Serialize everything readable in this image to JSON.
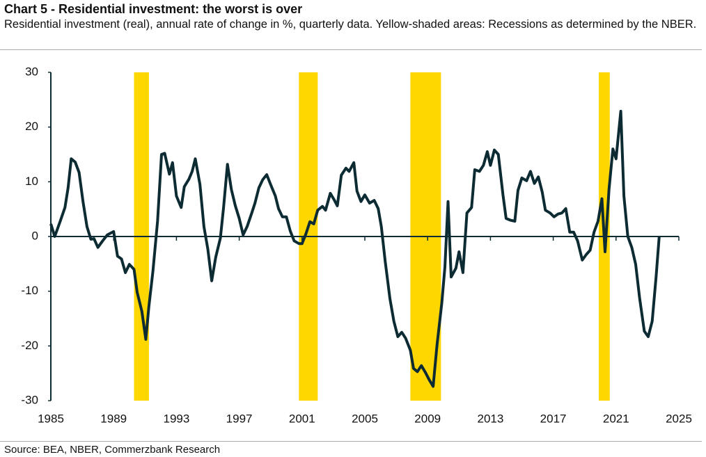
{
  "chart_data": {
    "type": "line",
    "title": "Chart 5 - Residential investment: the worst is over",
    "subtitle": "Residential investment (real), annual rate of change in %, quarterly data. Yellow-shaded areas: Recessions as determined by the NBER.",
    "source": "Source: BEA, NBER, Commerzbank Research",
    "color": "#0d2b33",
    "recession_color": "#ffd700",
    "recessions": [
      [
        1990.3,
        1991.25
      ],
      [
        2000.8,
        2002.0
      ],
      [
        2007.9,
        2009.85
      ],
      [
        2019.9,
        2020.6
      ]
    ],
    "x": [
      1985.0,
      1985.25,
      1985.6,
      1985.9,
      1986.1,
      1986.3,
      1986.55,
      1986.8,
      1987.05,
      1987.3,
      1987.55,
      1987.75,
      1988.0,
      1988.3,
      1988.6,
      1989.0,
      1989.25,
      1989.5,
      1989.75,
      1990.0,
      1990.3,
      1990.5,
      1990.8,
      1991.05,
      1991.25,
      1991.5,
      1991.8,
      1992.05,
      1992.25,
      1992.55,
      1992.75,
      1993.0,
      1993.3,
      1993.5,
      1993.8,
      1994.0,
      1994.2,
      1994.5,
      1994.75,
      1995.0,
      1995.25,
      1995.5,
      1995.8,
      1996.0,
      1996.25,
      1996.5,
      1996.75,
      1997.0,
      1997.25,
      1997.5,
      1997.8,
      1998.0,
      1998.25,
      1998.5,
      1998.75,
      1999.0,
      1999.3,
      1999.5,
      1999.75,
      2000.0,
      2000.25,
      2000.5,
      2000.8,
      2001.0,
      2001.25,
      2001.5,
      2001.75,
      2002.0,
      2002.3,
      2002.5,
      2002.8,
      2003.05,
      2003.25,
      2003.5,
      2003.8,
      2004.0,
      2004.3,
      2004.5,
      2004.75,
      2005.0,
      2005.3,
      2005.6,
      2005.85,
      2006.05,
      2006.3,
      2006.6,
      2006.85,
      2007.1,
      2007.35,
      2007.6,
      2007.9,
      2008.1,
      2008.35,
      2008.6,
      2008.85,
      2009.1,
      2009.35,
      2009.6,
      2009.9,
      2010.1,
      2010.3,
      2010.5,
      2010.8,
      2011.0,
      2011.25,
      2011.5,
      2011.8,
      2012.0,
      2012.3,
      2012.55,
      2012.8,
      2013.0,
      2013.25,
      2013.5,
      2013.8,
      2014.0,
      2014.25,
      2014.55,
      2014.75,
      2015.0,
      2015.3,
      2015.55,
      2015.8,
      2016.05,
      2016.3,
      2016.5,
      2016.8,
      2017.05,
      2017.3,
      2017.55,
      2017.8,
      2018.05,
      2018.3,
      2018.55,
      2018.85,
      2019.1,
      2019.35,
      2019.6,
      2019.85,
      2020.1,
      2020.3,
      2020.55,
      2020.8,
      2021.0,
      2021.3,
      2021.5,
      2021.75,
      2022.0,
      2022.25,
      2022.5,
      2022.8,
      2023.05,
      2023.3,
      2023.55,
      2023.75
    ],
    "values": [
      2.3,
      0,
      2.8,
      5.3,
      8.9,
      14.2,
      13.6,
      11.7,
      6.4,
      1.8,
      -0.5,
      -0.4,
      -2,
      -0.8,
      0.3,
      0.9,
      -3.6,
      -4.1,
      -6.6,
      -5.1,
      -6,
      -10.2,
      -13.7,
      -18.8,
      -12.7,
      -6.4,
      2.8,
      15,
      15.2,
      11.4,
      13.5,
      7.4,
      5.3,
      9.1,
      10.5,
      11.9,
      14.2,
      9.5,
      1.8,
      -2.3,
      -8.1,
      -3.8,
      -0.3,
      5.3,
      13.2,
      8.6,
      5.6,
      3.3,
      0.3,
      1.8,
      4.3,
      6.1,
      8.9,
      10.4,
      11.3,
      9.5,
      7.4,
      5.1,
      3.6,
      3.6,
      1,
      -0.8,
      -1.3,
      -1.3,
      0.5,
      2.7,
      2.3,
      4.8,
      5.5,
      4.8,
      7.9,
      6.7,
      5.6,
      11.2,
      12.5,
      11.9,
      13.5,
      8.3,
      6.4,
      7.6,
      6.1,
      6.6,
      5.1,
      1.8,
      -4.6,
      -11.4,
      -15.5,
      -18.3,
      -17.5,
      -18.6,
      -20.8,
      -24.1,
      -24.7,
      -23.6,
      -24.8,
      -26.2,
      -27.4,
      -19.8,
      -12.2,
      -5.6,
      6.4,
      -7.4,
      -5.8,
      -2.8,
      -6.6,
      4.3,
      5.3,
      12.2,
      11.9,
      13,
      15.5,
      13,
      15.8,
      15,
      7.6,
      3.3,
      3,
      2.8,
      8.4,
      10.7,
      10.2,
      11.9,
      9.7,
      10.9,
      8.1,
      4.8,
      4.3,
      3.6,
      4.1,
      4.3,
      5.1,
      0.8,
      0.8,
      -0.8,
      -4.3,
      -3.3,
      -2.5,
      0.8,
      2.8,
      6.9,
      -2.8,
      8.6,
      16,
      14.2,
      22.9,
      7.4,
      0,
      -2,
      -5.1,
      -11.2,
      -17.3,
      -18.3,
      -15.5,
      -7.4,
      0
    ],
    "xlim": [
      1985,
      2025
    ],
    "xticks": [
      1985,
      1989,
      1993,
      1997,
      2001,
      2005,
      2009,
      2013,
      2017,
      2021,
      2025
    ],
    "ylim": [
      -30,
      30
    ],
    "yticks": [
      -30,
      -20,
      -10,
      0,
      10,
      20,
      30
    ]
  }
}
